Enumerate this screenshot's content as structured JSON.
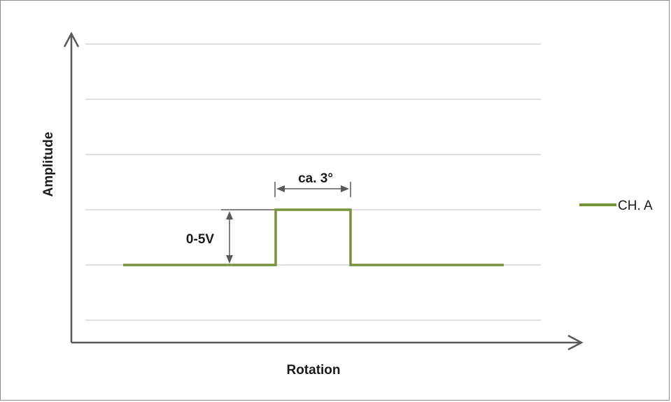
{
  "chart_data": {
    "type": "line",
    "title": "",
    "xlabel": "Rotation",
    "ylabel": "Amplitude",
    "grid": true,
    "legend_position": "right",
    "series": [
      {
        "name": "CH. A",
        "color": "#77933c",
        "step_shape": "rectangular pulse",
        "levels": [
          "low",
          "high"
        ]
      }
    ],
    "annotations": [
      {
        "id": "pulse_width",
        "text": "ca. 3°"
      },
      {
        "id": "amplitude",
        "text": "0-5V"
      }
    ]
  },
  "colors": {
    "series": "#77933c",
    "axis": "#595959",
    "grid": "#bfbfbf",
    "annotation": "#595959"
  }
}
